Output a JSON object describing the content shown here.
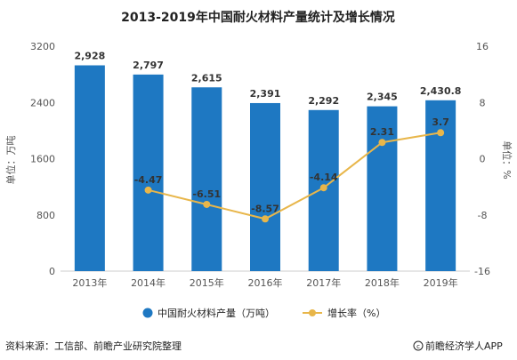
{
  "chart_data": {
    "type": "bar",
    "title": "2013-2019年中国耐火材料产量统计及增长情况",
    "categories": [
      "2013年",
      "2014年",
      "2015年",
      "2016年",
      "2017年",
      "2018年",
      "2019年"
    ],
    "series": [
      {
        "name": "中国耐火材料产量（万吨）",
        "type": "bar",
        "axis": "left",
        "color": "#1e78c2",
        "values": [
          2928,
          2797,
          2615,
          2391,
          2292,
          2345,
          2430.8
        ],
        "labels": [
          "2,928",
          "2,797",
          "2,615",
          "2,391",
          "2,292",
          "2,345",
          "2,430.8"
        ]
      },
      {
        "name": "增长率（%）",
        "type": "line",
        "axis": "right",
        "color": "#e8b64a",
        "values": [
          null,
          -4.47,
          -6.51,
          -8.57,
          -4.14,
          2.31,
          3.7
        ],
        "labels": [
          "",
          "-4.47",
          "-6.51",
          "-8.57",
          "-4.14",
          "2.31",
          "3.7"
        ]
      }
    ],
    "ylabel": "单位：万吨",
    "ylim": [
      0,
      3200
    ],
    "yticks": [
      "0",
      "800",
      "1600",
      "2400",
      "3200"
    ],
    "y2label": "单位：%",
    "y2lim": [
      -16,
      16
    ],
    "y2ticks": [
      "-16",
      "-8",
      "0",
      "8",
      "16"
    ],
    "legend_position": "bottom",
    "grid": false
  },
  "footer": {
    "source": "资料来源：工信部、前瞻产业研究院整理",
    "brand": "前瞻经济学人APP",
    "brand_icon": "copyright-icon"
  }
}
